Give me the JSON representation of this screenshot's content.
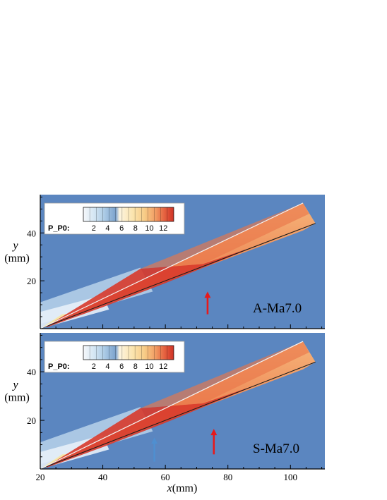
{
  "chart_data": [
    {
      "type": "heatmap",
      "case_label": "A-Ma7.0",
      "variable": "P_P0",
      "x_range": [
        20,
        111
      ],
      "y_range": [
        0,
        56
      ],
      "y_ticks": [
        20,
        40
      ],
      "colorbar": {
        "label": "P_P0:",
        "ticks": [
          2,
          4,
          6,
          8,
          10,
          12
        ],
        "range": [
          0.5,
          13.5
        ],
        "colors": [
          "#f6f8fb",
          "#d4e6f3",
          "#a9c9e4",
          "#6f97c6",
          "#fbf0d8",
          "#fbe3a9",
          "#f6c67f",
          "#f19b62",
          "#e4603f",
          "#cf3226"
        ]
      },
      "arrows": [
        {
          "color": "#e8191a",
          "x": 73.5,
          "y_tail": 6,
          "y_head": 15.5
        }
      ]
    },
    {
      "type": "heatmap",
      "case_label": "S-Ma7.0",
      "variable": "P_P0",
      "x_range": [
        20,
        111
      ],
      "y_range": [
        0,
        56
      ],
      "y_ticks": [
        20,
        40
      ],
      "x_ticks": [
        20,
        40,
        60,
        80,
        100
      ],
      "colorbar": {
        "label": "P_P0:",
        "ticks": [
          2,
          4,
          6,
          8,
          10,
          12
        ],
        "range": [
          0.5,
          13.5
        ]
      },
      "arrows": [
        {
          "color": "#e8191a",
          "x": 75.5,
          "y_tail": 6,
          "y_head": 16.5
        },
        {
          "color": "#4f8fd0",
          "x": 56.5,
          "y_tail": 3,
          "y_head": 13
        }
      ]
    }
  ],
  "axes": {
    "xlabel_var": "x",
    "xlabel_unit": "(mm)",
    "ylabel_var": "y",
    "ylabel_unit": "(mm)"
  },
  "colors": {
    "freestream": "#5b86c0",
    "high_pressure": "#d83a2b",
    "mid_pressure": "#f2a56a",
    "low_wash": "#b9d2ea"
  }
}
